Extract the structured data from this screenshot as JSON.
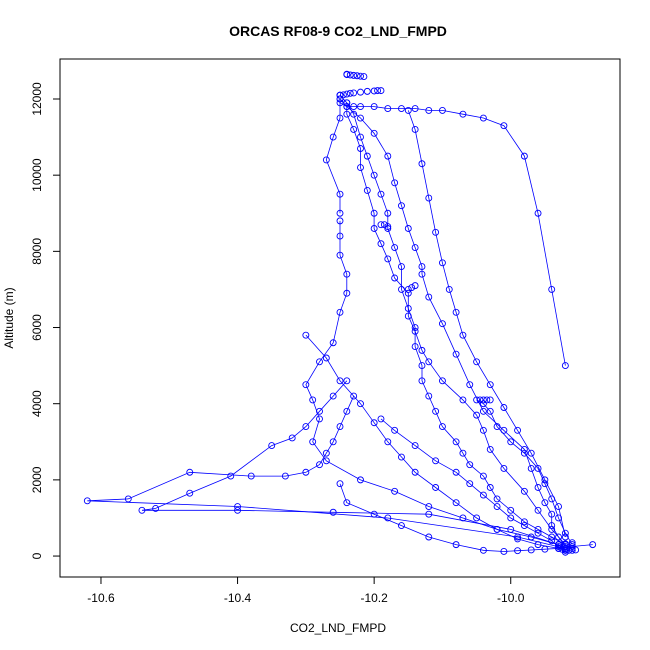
{
  "chart_data": {
    "type": "line",
    "title": "ORCAS RF08-9 CO2_LND_FMPD",
    "xlabel": "CO2_LND_FMPD",
    "ylabel": "Altitude (m)",
    "xlim": [
      -10.66,
      -9.84
    ],
    "ylim": [
      -550,
      13050
    ],
    "xticks": [
      -10.6,
      -10.4,
      -10.2,
      -10.0
    ],
    "xtick_labels": [
      "-10.6",
      "-10.4",
      "-10.2",
      "-10.0"
    ],
    "yticks": [
      0,
      2000,
      4000,
      6000,
      8000,
      10000,
      12000
    ],
    "ytick_labels": [
      "0",
      "2000",
      "4000",
      "6000",
      "8000",
      "10000",
      "12000"
    ],
    "grid": false,
    "legend": "none",
    "marker": "open-circle",
    "color": "#0000ff",
    "series": [
      {
        "x": [
          -9.92,
          -9.93,
          -9.94,
          -9.94,
          -9.95,
          -9.96,
          -9.97,
          -9.98,
          -10.01,
          -10.04,
          -10.06,
          -10.08,
          -10.1,
          -10.12,
          -10.13,
          -10.13,
          -10.14,
          -10.15,
          -10.16,
          -10.17,
          -10.18,
          -10.2,
          -10.22,
          -10.24,
          -10.25,
          -10.25,
          -10.26,
          -10.27,
          -10.25,
          -10.25
        ],
        "y": [
          250,
          500,
          800,
          1100,
          1400,
          1800,
          2300,
          2800,
          3300,
          3800,
          4500,
          5300,
          6100,
          6800,
          7400,
          7600,
          8100,
          8600,
          9200,
          9800,
          10500,
          11100,
          11500,
          11800,
          12000,
          11500,
          11000,
          10400,
          9500,
          9000
        ]
      },
      {
        "x": [
          -10.25,
          -10.25,
          -10.25,
          -10.24,
          -10.24,
          -10.25,
          -10.26,
          -10.28,
          -10.3,
          -10.29,
          -10.28,
          -10.29,
          -10.27,
          -10.22,
          -10.17,
          -10.12,
          -10.07,
          -10.02,
          -9.97,
          -9.93,
          -9.92
        ],
        "y": [
          8800,
          8400,
          7900,
          7400,
          6900,
          6400,
          5600,
          5100,
          4500,
          4100,
          3600,
          3000,
          2500,
          2000,
          1700,
          1300,
          1000,
          700,
          500,
          300,
          200
        ]
      },
      {
        "x": [
          -9.92,
          -9.94,
          -9.96,
          -9.98,
          -10.01,
          -10.03,
          -10.04,
          -10.05,
          -10.07,
          -10.1,
          -10.12,
          -10.13,
          -10.14,
          -10.15,
          -10.15,
          -10.17,
          -10.18,
          -10.19,
          -10.2,
          -10.2,
          -10.21,
          -10.22,
          -10.22,
          -10.23,
          -10.24,
          -10.24,
          -10.25,
          -10.25
        ],
        "y": [
          300,
          700,
          1200,
          1700,
          2300,
          2800,
          3300,
          3700,
          4100,
          4600,
          5100,
          5400,
          5900,
          6300,
          6900,
          7300,
          7800,
          8200,
          8600,
          9000,
          9600,
          10200,
          10700,
          11200,
          11600,
          11900,
          12100,
          12100
        ]
      },
      {
        "x": [
          -10.24,
          -10.23,
          -10.22,
          -10.21,
          -10.2,
          -10.19,
          -10.18,
          -10.18,
          -10.17,
          -10.16,
          -10.16,
          -10.15,
          -10.14,
          -10.14,
          -10.13,
          -10.13,
          -10.12,
          -10.11,
          -10.1,
          -10.08,
          -10.07,
          -10.06,
          -10.04,
          -10.03,
          -10.02,
          -10.0,
          -9.98,
          -9.96,
          -9.94,
          -9.92,
          -9.91
        ],
        "y": [
          11900,
          11600,
          11000,
          10500,
          10000,
          9500,
          9000,
          8600,
          8100,
          7600,
          7000,
          6500,
          6000,
          5500,
          5000,
          4600,
          4200,
          3800,
          3400,
          3000,
          2700,
          2400,
          2100,
          1800,
          1500,
          1200,
          900,
          700,
          500,
          300,
          200
        ]
      },
      {
        "x": [
          -10.25,
          -10.25,
          -10.24,
          -10.23,
          -10.22,
          -10.2,
          -10.18,
          -10.16,
          -10.14,
          -10.12,
          -10.1,
          -10.07,
          -10.04,
          -10.01,
          -9.98,
          -9.96,
          -9.94,
          -9.92
        ],
        "y": [
          12000,
          11900,
          11800,
          11800,
          11800,
          11800,
          11750,
          11750,
          11750,
          11700,
          11700,
          11600,
          11500,
          11300,
          10500,
          9000,
          7000,
          5000
        ]
      },
      {
        "x": [
          -10.15,
          -10.14,
          -10.13,
          -10.12,
          -10.11,
          -10.1,
          -10.09,
          -10.08,
          -10.07,
          -10.05,
          -10.03,
          -10.01,
          -9.99,
          -9.97,
          -9.95,
          -9.93,
          -9.92
        ],
        "y": [
          11700,
          11200,
          10300,
          9400,
          8500,
          7700,
          7000,
          6400,
          5800,
          5100,
          4500,
          3900,
          3300,
          2700,
          2000,
          1300,
          500
        ]
      },
      {
        "x": [
          -10.23,
          -10.24,
          -10.25,
          -10.26,
          -10.27,
          -10.28,
          -10.3,
          -10.33,
          -10.38,
          -10.47,
          -10.56,
          -10.62,
          -10.4,
          -10.18,
          -9.99,
          -9.92
        ],
        "y": [
          4200,
          3800,
          3400,
          3000,
          2700,
          2400,
          2200,
          2100,
          2100,
          2200,
          1500,
          1450,
          1300,
          1000,
          500,
          200
        ]
      },
      {
        "x": [
          -10.24,
          -10.26,
          -10.28,
          -10.3,
          -10.32,
          -10.35,
          -10.41,
          -10.47,
          -10.52,
          -10.54,
          -10.4,
          -10.26,
          -10.12,
          -10.0,
          -9.93,
          -9.92
        ],
        "y": [
          4600,
          4200,
          3800,
          3400,
          3100,
          2900,
          2100,
          1650,
          1250,
          1200,
          1200,
          1150,
          1100,
          700,
          300,
          150
        ]
      },
      {
        "x": [
          -10.19,
          -10.17,
          -10.14,
          -10.11,
          -10.08,
          -10.06,
          -10.04,
          -10.02,
          -10.0,
          -9.98,
          -9.96,
          -9.94,
          -9.93,
          -9.92
        ],
        "y": [
          3600,
          3300,
          2900,
          2500,
          2200,
          1900,
          1600,
          1300,
          1000,
          800,
          600,
          400,
          250,
          150
        ]
      },
      {
        "x": [
          -10.05,
          -10.04,
          -10.03,
          -10.02,
          -10.0,
          -9.98,
          -9.96,
          -9.95,
          -9.94,
          -9.93,
          -9.92,
          -9.91
        ],
        "y": [
          4100,
          4000,
          3800,
          3400,
          3000,
          2700,
          2300,
          1900,
          1500,
          1000,
          600,
          300
        ]
      },
      {
        "x": [
          -10.3,
          -10.27,
          -10.25,
          -10.22,
          -10.2,
          -10.18,
          -10.16,
          -10.14,
          -10.11,
          -10.08,
          -10.05,
          -10.02,
          -9.99,
          -9.96,
          -9.93,
          -9.92
        ],
        "y": [
          5800,
          5200,
          4600,
          4000,
          3500,
          3000,
          2600,
          2200,
          1800,
          1400,
          1000,
          700,
          450,
          300,
          200,
          100
        ]
      },
      {
        "x": [
          -9.88,
          -9.91,
          -9.93,
          -9.95,
          -9.97,
          -9.99,
          -10.01,
          -10.04,
          -10.08,
          -10.12,
          -10.16,
          -10.2,
          -10.24,
          -10.25
        ],
        "y": [
          300,
          250,
          200,
          180,
          160,
          140,
          120,
          150,
          300,
          500,
          800,
          1100,
          1400,
          1900
        ]
      }
    ],
    "clusters": [
      {
        "x": [
          -10.24,
          -10.24,
          -10.235,
          -10.23,
          -10.225,
          -10.22,
          -10.215
        ],
        "y": [
          12650,
          12640,
          12630,
          12620,
          12610,
          12600,
          12590
        ]
      },
      {
        "x": [
          -10.25,
          -10.245,
          -10.24,
          -10.235,
          -10.23,
          -10.22,
          -10.21,
          -10.2,
          -10.195,
          -10.19
        ],
        "y": [
          12100,
          12110,
          12130,
          12150,
          12160,
          12180,
          12200,
          12210,
          12220,
          12220
        ]
      },
      {
        "x": [
          -10.045,
          -10.04,
          -10.035,
          -10.03
        ],
        "y": [
          4100,
          4100,
          4100,
          4100
        ]
      },
      {
        "x": [
          -9.93,
          -9.925,
          -9.92,
          -9.915,
          -9.91,
          -9.905,
          -9.93,
          -9.92,
          -9.91
        ],
        "y": [
          200,
          180,
          160,
          150,
          150,
          160,
          300,
          320,
          350
        ]
      },
      {
        "x": [
          -10.15,
          -10.145,
          -10.14
        ],
        "y": [
          7000,
          7050,
          7100
        ]
      },
      {
        "x": [
          -10.19,
          -10.185,
          -10.18
        ],
        "y": [
          8700,
          8700,
          8650
        ]
      }
    ]
  }
}
